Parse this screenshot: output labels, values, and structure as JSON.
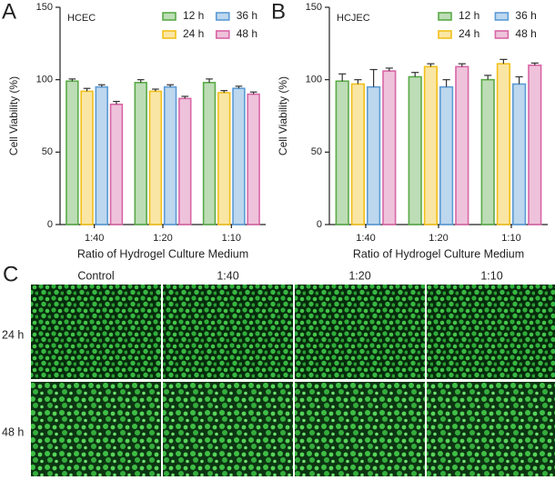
{
  "chart_data": [
    {
      "type": "bar",
      "panel_label": "A",
      "title": "HCEC",
      "y_label": "Cell Viability (%)",
      "x_label": "Ratio of Hydrogel  Culture Medium",
      "categories": [
        "1:40",
        "1:20",
        "1:10"
      ],
      "series": [
        {
          "name": "12 h",
          "color": "#5aab48",
          "values": [
            99,
            98,
            98
          ],
          "errors": [
            1.5,
            2,
            2.5
          ]
        },
        {
          "name": "24 h",
          "color": "#f2c01c",
          "values": [
            92,
            92,
            91
          ],
          "errors": [
            2,
            1.5,
            1.5
          ]
        },
        {
          "name": "36 h",
          "color": "#5b9bd5",
          "values": [
            95,
            95,
            94
          ],
          "errors": [
            1.5,
            1.5,
            1.5
          ]
        },
        {
          "name": "48 h",
          "color": "#d866a6",
          "values": [
            83,
            87,
            90
          ],
          "errors": [
            2,
            1.5,
            1.5
          ]
        }
      ],
      "ylim": [
        0,
        150
      ],
      "yticks": [
        0,
        50,
        100,
        150
      ],
      "legend": "top-right"
    },
    {
      "type": "bar",
      "panel_label": "B",
      "title": "HCJEC",
      "y_label": "Cell Viability (%)",
      "x_label": "Ratio of Hydrogel  Culture Medium",
      "categories": [
        "1:40",
        "1:20",
        "1:10"
      ],
      "series": [
        {
          "name": "12 h",
          "color": "#5aab48",
          "values": [
            99,
            102,
            100
          ],
          "errors": [
            5,
            3,
            3
          ]
        },
        {
          "name": "24 h",
          "color": "#f2c01c",
          "values": [
            97,
            109,
            111
          ],
          "errors": [
            3,
            2,
            3
          ]
        },
        {
          "name": "36 h",
          "color": "#5b9bd5",
          "values": [
            95,
            95,
            97
          ],
          "errors": [
            12,
            5,
            5
          ]
        },
        {
          "name": "48 h",
          "color": "#d866a6",
          "values": [
            106,
            109,
            110
          ],
          "errors": [
            2,
            2,
            1.5
          ]
        }
      ],
      "ylim": [
        0,
        150
      ],
      "yticks": [
        0,
        50,
        100,
        150
      ],
      "legend": "top-right"
    }
  ],
  "panel_c": {
    "label": "C",
    "columns": [
      "Control",
      "1:40",
      "1:20",
      "1:10"
    ],
    "rows": [
      "24 h",
      "48 h"
    ]
  }
}
